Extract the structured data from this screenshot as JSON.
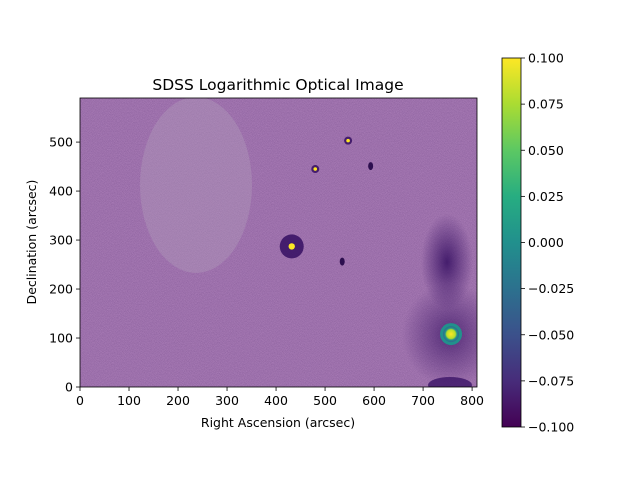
{
  "figure": {
    "title": "SDSS Logarithmic Optical Image",
    "xlabel": "Right Ascension (arcsec)",
    "ylabel": "Declination (arcsec)",
    "colormap": "viridis"
  },
  "chart_data": {
    "type": "heatmap",
    "title": "SDSS Logarithmic Optical Image",
    "xlabel": "Right Ascension (arcsec)",
    "ylabel": "Declination (arcsec)",
    "xlim": [
      0,
      810
    ],
    "ylim": [
      0,
      590
    ],
    "xticks": [
      0,
      100,
      200,
      300,
      400,
      500,
      600,
      700,
      800
    ],
    "yticks": [
      0,
      100,
      200,
      300,
      400,
      500
    ],
    "colorbar": {
      "range": [
        -0.1,
        0.1
      ],
      "ticks": [
        "0.100",
        "0.075",
        "0.050",
        "0.025",
        "0.000",
        "−0.025",
        "−0.050",
        "−0.075",
        "−0.100"
      ]
    },
    "background_level": -0.1,
    "sources": [
      {
        "ra": 757,
        "dec": 108,
        "kind": "bright star (saturated)"
      },
      {
        "ra": 432,
        "dec": 287,
        "kind": "star"
      },
      {
        "ra": 547,
        "dec": 503,
        "kind": "star"
      },
      {
        "ra": 480,
        "dec": 445,
        "kind": "star"
      },
      {
        "ra": 535,
        "dec": 256,
        "kind": "faint source"
      },
      {
        "ra": 593,
        "dec": 451,
        "kind": "faint source"
      }
    ],
    "features": [
      {
        "kind": "diffuse glow",
        "ra": 750,
        "dec": 250
      },
      {
        "kind": "elliptical brighter region",
        "ra": 235,
        "dec": 410
      }
    ]
  }
}
